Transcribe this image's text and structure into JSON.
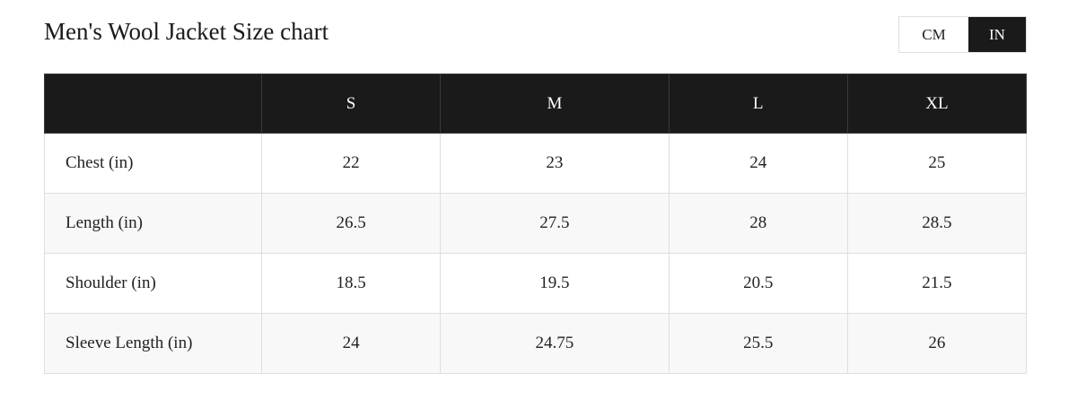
{
  "header": {
    "title": "Men's Wool Jacket Size chart"
  },
  "unit_toggle": {
    "options": [
      "CM",
      "IN"
    ],
    "active_index": 1
  },
  "table": {
    "columns": [
      "S",
      "M",
      "L",
      "XL"
    ],
    "rows": [
      {
        "label": "Chest (in)",
        "values": [
          22,
          23,
          24,
          25
        ]
      },
      {
        "label": "Length (in)",
        "values": [
          26.5,
          27.5,
          28,
          28.5
        ]
      },
      {
        "label": "Shoulder (in)",
        "values": [
          18.5,
          19.5,
          20.5,
          21.5
        ]
      },
      {
        "label": "Sleeve Length (in)",
        "values": [
          24,
          24.75,
          25.5,
          26
        ]
      }
    ]
  }
}
